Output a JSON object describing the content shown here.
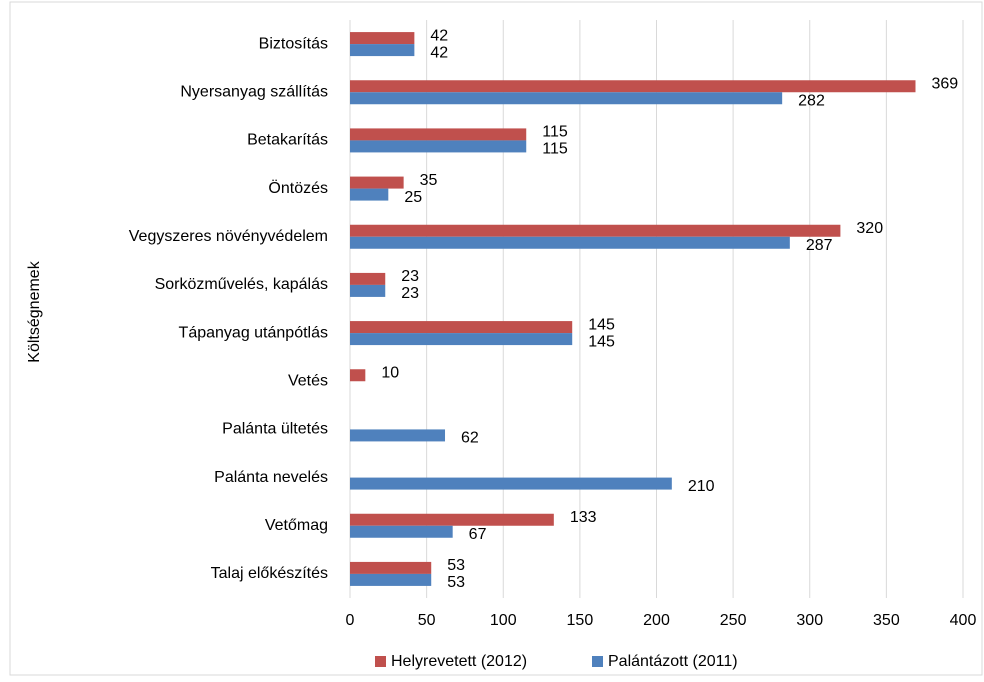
{
  "chart_data": {
    "type": "hbar",
    "y_axis_label": "Költségnemek",
    "categories": [
      "Biztosítás",
      "Nyersanyag szállítás",
      "Betakarítás",
      "Öntözés",
      "Vegyszeres növényvédelem",
      "Sorközművelés, kapálás",
      "Tápanyag utánpótlás",
      "Vetés",
      "Palánta ültetés",
      "Palánta nevelés",
      "Vetőmag",
      "Talaj előkészítés"
    ],
    "series": [
      {
        "name": "Helyrevetett (2012)",
        "color": "#c0504d",
        "values": [
          42,
          369,
          115,
          35,
          320,
          23,
          145,
          10,
          null,
          null,
          133,
          53
        ]
      },
      {
        "name": "Palántázott (2011)",
        "color": "#4f81bd",
        "values": [
          42,
          282,
          115,
          25,
          287,
          23,
          145,
          null,
          62,
          210,
          67,
          53
        ]
      }
    ],
    "xlim": [
      0,
      400
    ],
    "xticks": [
      0,
      50,
      100,
      150,
      200,
      250,
      300,
      350,
      400
    ],
    "grid": true,
    "legend": "bottom"
  }
}
